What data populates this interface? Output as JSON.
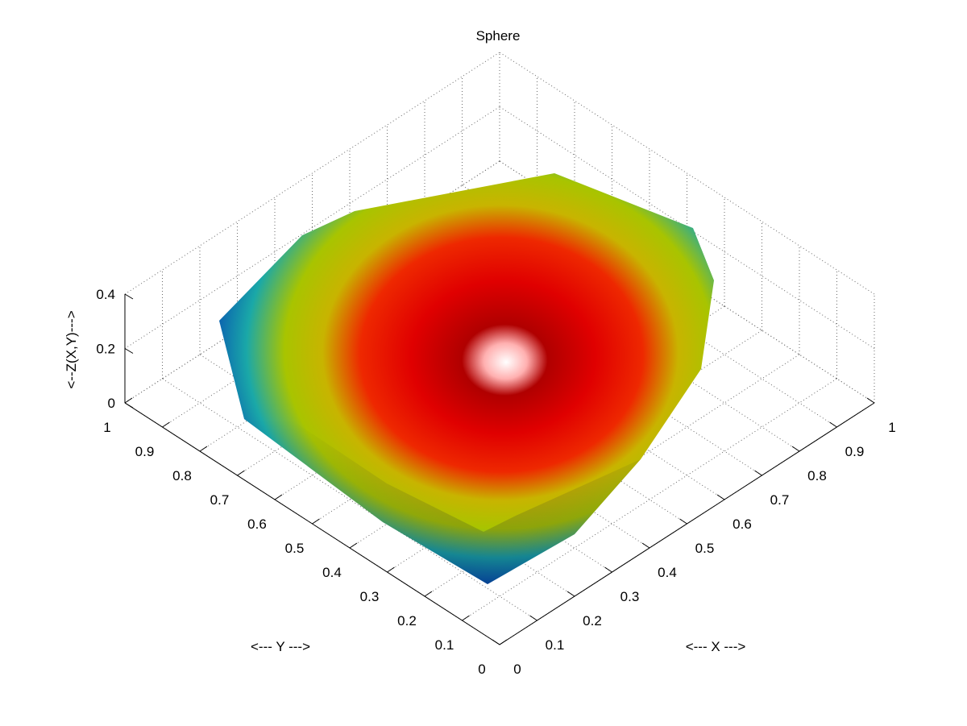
{
  "chart_data": {
    "type": "surface3d",
    "title": "Sphere",
    "xlabel": "<--- X --->",
    "ylabel": "<--- Y --->",
    "zlabel": "<--Z(X,Y)--->",
    "xlim": [
      0,
      1
    ],
    "ylim": [
      0,
      1
    ],
    "zlim": [
      0,
      0.4
    ],
    "grid": true,
    "colormap": "jet",
    "x_ticks": [
      "0",
      "0.1",
      "0.2",
      "0.3",
      "0.4",
      "0.5",
      "0.6",
      "0.7",
      "0.8",
      "0.9",
      "1"
    ],
    "y_ticks": [
      "0",
      "0.1",
      "0.2",
      "0.3",
      "0.4",
      "0.5",
      "0.6",
      "0.7",
      "0.8",
      "0.9",
      "1"
    ],
    "z_ticks": [
      "0",
      "0.2",
      "0.4"
    ],
    "surface": {
      "description_free": true,
      "center": [
        0.5,
        0.5
      ],
      "z_range": [
        0,
        0.4
      ]
    }
  }
}
